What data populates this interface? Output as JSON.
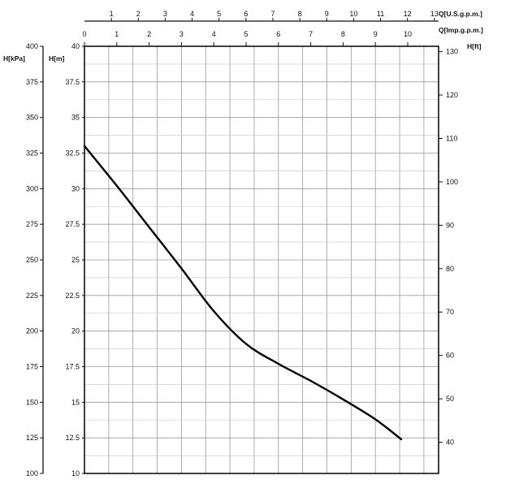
{
  "chart_data": {
    "type": "line",
    "title": "",
    "axes": {
      "left_outer": {
        "label": "H[kPa]",
        "range": [
          100,
          400
        ],
        "ticks": [
          "100",
          "125",
          "150",
          "175",
          "200",
          "225",
          "250",
          "275",
          "300",
          "325",
          "350",
          "375",
          "400"
        ]
      },
      "left_inner": {
        "label": "H[m]",
        "range": [
          10,
          40
        ],
        "ticks": [
          "10",
          "12.5",
          "15",
          "17.5",
          "20",
          "22.5",
          "25",
          "27.5",
          "30",
          "32.5",
          "35",
          "37.5",
          "40"
        ]
      },
      "right": {
        "label": "H[ft]",
        "ticks": [
          "40",
          "50",
          "60",
          "70",
          "80",
          "90",
          "100",
          "110",
          "120",
          "130"
        ]
      },
      "top_outer": {
        "label": "Q[U.S.g.p.m.]",
        "ticks": [
          "1",
          "2",
          "3",
          "4",
          "5",
          "6",
          "7",
          "8",
          "9",
          "10",
          "11",
          "12",
          "13"
        ]
      },
      "top_inner": {
        "label": "Q[Imp.g.p.m.]",
        "range": [
          0,
          11
        ],
        "ticks": [
          "0",
          "1",
          "2",
          "3",
          "4",
          "5",
          "6",
          "7",
          "8",
          "9",
          "10"
        ]
      }
    },
    "grid": true,
    "series": [
      {
        "x_unit": "Imp.g.p.m.",
        "y_unit": "m",
        "x": [
          0,
          1,
          2,
          3,
          4,
          5,
          6,
          7,
          8,
          9,
          9.8
        ],
        "y": [
          33,
          30.2,
          27.3,
          24.4,
          21.4,
          19.1,
          17.7,
          16.5,
          15.2,
          13.8,
          12.4
        ]
      }
    ]
  }
}
